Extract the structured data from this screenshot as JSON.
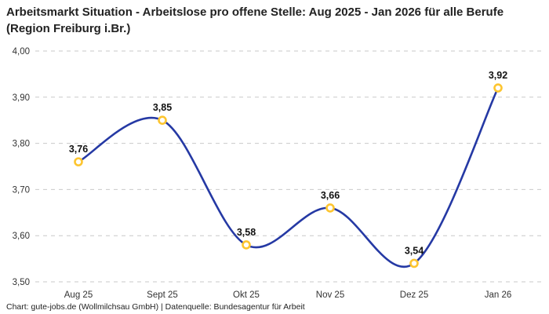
{
  "header": {
    "title": "Arbeitsmarkt Situation - Arbeitslose pro offene Stelle: Aug 2025 - Jan 2026 für alle Berufe (Region Freiburg i.Br.)"
  },
  "footer": {
    "credit": "Chart: gute-jobs.de (Wollmilchsau GmbH) | Datenquelle: Bundesagentur für Arbeit"
  },
  "chart_data": {
    "type": "line",
    "title": "Arbeitsmarkt Situation - Arbeitslose pro offene Stelle: Aug 2025 - Jan 2026 für alle Berufe (Region Freiburg i.Br.)",
    "categories": [
      "Aug 25",
      "Sept 25",
      "Okt 25",
      "Nov 25",
      "Dez 25",
      "Jan 26"
    ],
    "values": [
      3.76,
      3.85,
      3.58,
      3.66,
      3.54,
      3.92
    ],
    "value_labels": [
      "3,76",
      "3,85",
      "3,58",
      "3,66",
      "3,54",
      "3,92"
    ],
    "y_ticks": [
      {
        "value": 4.0,
        "label": "4,00"
      },
      {
        "value": 3.9,
        "label": "3,90"
      },
      {
        "value": 3.8,
        "label": "3,80"
      },
      {
        "value": 3.7,
        "label": "3,70"
      },
      {
        "value": 3.6,
        "label": "3,60"
      },
      {
        "value": 3.5,
        "label": "3,50"
      }
    ],
    "ylim": [
      3.5,
      4.0
    ],
    "xlabel": "",
    "ylabel": "",
    "legend": "none",
    "grid": "horizontal-dashed",
    "line_style": "smooth",
    "colors": {
      "line": "#2539a4",
      "marker_ring": "#fdc52f",
      "marker_fill": "#ffffff",
      "gridline": "#c9c9c9",
      "tick_text": "#333333",
      "data_label_text": "#111111",
      "title_text": "#222222",
      "credit_text": "#222222",
      "background": "#ffffff"
    }
  }
}
